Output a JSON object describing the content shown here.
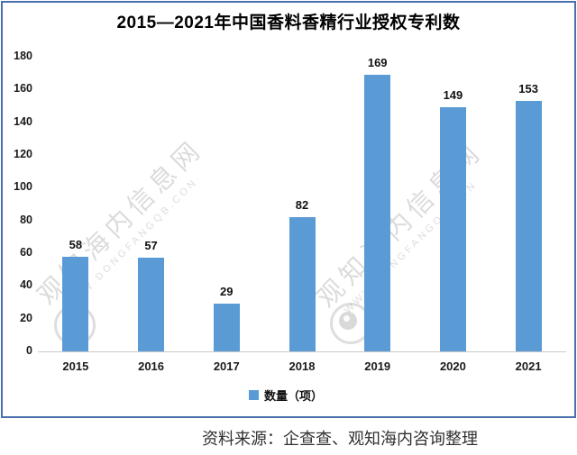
{
  "chart_data": {
    "type": "bar",
    "title": "2015—2021年中国香料香精行业授权专利数",
    "categories": [
      "2015",
      "2016",
      "2017",
      "2018",
      "2019",
      "2020",
      "2021"
    ],
    "values": [
      58,
      57,
      29,
      82,
      169,
      149,
      153
    ],
    "series_name": "数量（项）",
    "xlabel": "",
    "ylabel": "",
    "ylim": [
      0,
      180
    ],
    "ytick_step": 20,
    "grid": false,
    "legend_position": "bottom-center",
    "data_labels": true
  },
  "source": "资料来源：企查查、观知海内咨询整理",
  "watermark": {
    "cjk": "观知海内信息网",
    "latin": "WWW.DONGFANGQB.CON"
  },
  "colors": {
    "bar": "#5B9BD5",
    "frame_border": "#4a6fad",
    "axis_line": "#c9c9c9",
    "title_text": "#000000",
    "source_text": "#303030"
  }
}
